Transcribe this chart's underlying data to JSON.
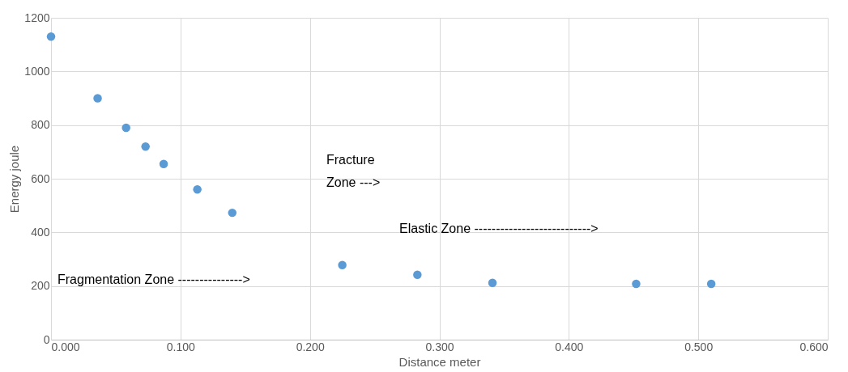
{
  "chart_data": {
    "type": "scatter",
    "xlabel": "Distance   meter",
    "ylabel": "Energy   joule",
    "x": [
      0.0,
      0.036,
      0.058,
      0.073,
      0.087,
      0.113,
      0.14,
      0.225,
      0.283,
      0.341,
      0.452,
      0.51
    ],
    "series": [
      {
        "color": "#5b9bd5",
        "values": [
          1130,
          900,
          790,
          720,
          655,
          560,
          473,
          278,
          242,
          212,
          208,
          208
        ]
      }
    ],
    "xlim": [
      0,
      0.6
    ],
    "xticks": [
      {
        "value": 0,
        "label": "0.000"
      },
      {
        "value": 0.1,
        "label": "0.100"
      },
      {
        "value": 0.2,
        "label": "0.200"
      },
      {
        "value": 0.3,
        "label": "0.300"
      },
      {
        "value": 0.4,
        "label": "0.400"
      },
      {
        "value": 0.5,
        "label": "0.500"
      },
      {
        "value": 0.6,
        "label": "0.600"
      }
    ],
    "ylim": [
      0,
      1200
    ],
    "yticks": [
      0,
      200,
      400,
      600,
      800,
      {
        "value": 1000,
        "label": "1000"
      },
      {
        "value": 1200,
        "label": "1200"
      }
    ],
    "grid": true,
    "marker": "circle",
    "annotations": [
      "Fragmentation Zone --------------->",
      "Fracture\nZone --->",
      "Elastic Zone --------------------------->"
    ]
  }
}
